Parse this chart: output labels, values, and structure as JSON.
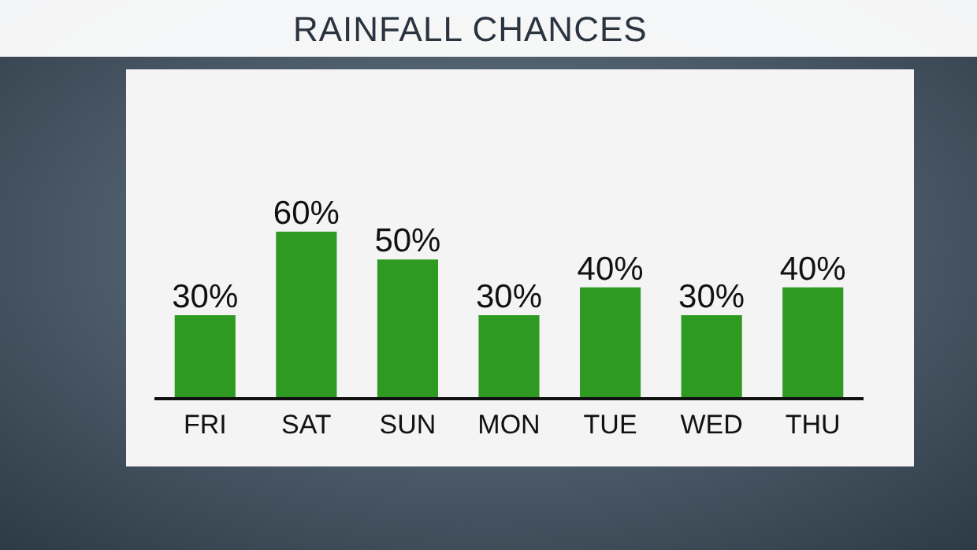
{
  "chart_data": {
    "type": "bar",
    "title": "RAINFALL CHANCES",
    "categories": [
      "FRI",
      "SAT",
      "SUN",
      "MON",
      "TUE",
      "WED",
      "THU"
    ],
    "values": [
      30,
      60,
      50,
      30,
      40,
      30,
      40
    ],
    "value_labels": [
      "30%",
      "60%",
      "50%",
      "30%",
      "40%",
      "30%",
      "40%"
    ],
    "color": "#2e9a22"
  }
}
